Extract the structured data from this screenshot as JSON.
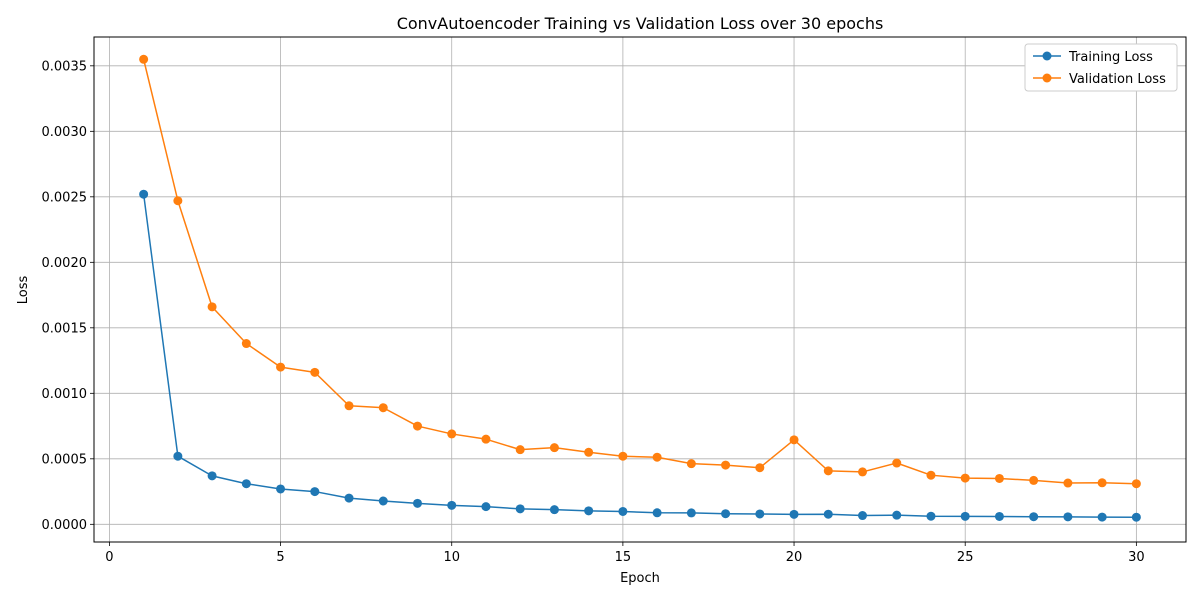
{
  "chart_data": {
    "type": "line",
    "title": "ConvAutoencoder Training vs Validation Loss over 30 epochs",
    "xlabel": "Epoch",
    "ylabel": "Loss",
    "xlim": [
      -0.45,
      31.45
    ],
    "ylim": [
      -0.000135,
      0.00372
    ],
    "xticks": [
      0,
      5,
      10,
      15,
      20,
      25,
      30
    ],
    "yticks": [
      0.0,
      0.0005,
      0.001,
      0.0015,
      0.002,
      0.0025,
      0.003,
      0.0035
    ],
    "ytick_labels": [
      "0.0000",
      "0.0005",
      "0.0010",
      "0.0015",
      "0.0020",
      "0.0025",
      "0.0030",
      "0.0035"
    ],
    "grid": true,
    "legend_position": "top-right",
    "x": [
      1,
      2,
      3,
      4,
      5,
      6,
      7,
      8,
      9,
      10,
      11,
      12,
      13,
      14,
      15,
      16,
      17,
      18,
      19,
      20,
      21,
      22,
      23,
      24,
      25,
      26,
      27,
      28,
      29,
      30
    ],
    "series": [
      {
        "name": "Training Loss",
        "color": "#1f77b4",
        "marker": "circle",
        "values": [
          0.00252,
          0.00052,
          0.00037,
          0.00031,
          0.00027,
          0.00025,
          0.0002,
          0.000178,
          0.00016,
          0.000145,
          0.000135,
          0.000118,
          0.000112,
          0.000103,
          9.8e-05,
          8.8e-05,
          8.7e-05,
          8.1e-05,
          7.9e-05,
          7.6e-05,
          7.7e-05,
          6.7e-05,
          7e-05,
          6.2e-05,
          6.1e-05,
          6e-05,
          5.8e-05,
          5.7e-05,
          5.5e-05,
          5.4e-05
        ]
      },
      {
        "name": "Validation Loss",
        "color": "#ff7f0e",
        "marker": "circle",
        "values": [
          0.00355,
          0.00247,
          0.00166,
          0.00138,
          0.0012,
          0.00116,
          0.000905,
          0.00089,
          0.00075,
          0.00069,
          0.00065,
          0.00057,
          0.000585,
          0.00055,
          0.00052,
          0.000512,
          0.000463,
          0.000452,
          0.000432,
          0.000645,
          0.000408,
          0.0004,
          0.000468,
          0.000375,
          0.000353,
          0.00035,
          0.000335,
          0.000315,
          0.000317,
          0.00031
        ]
      }
    ]
  }
}
